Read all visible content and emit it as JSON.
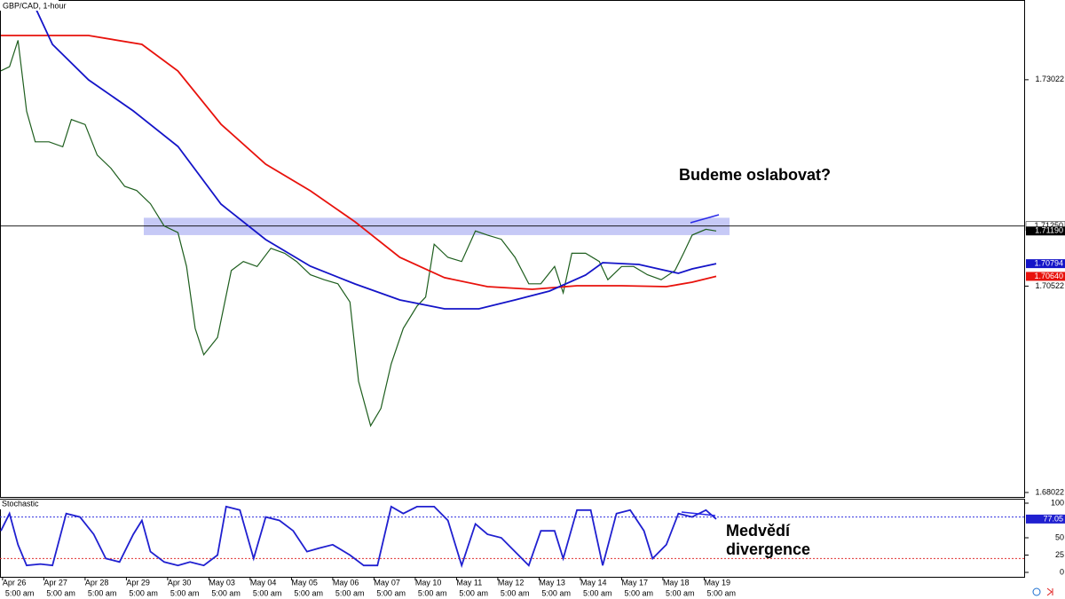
{
  "chart_data": [
    {
      "type": "line",
      "title": "GBP/CAD, 1-hour",
      "xlim": [
        -1.5,
        594.6
      ],
      "ylim": [
        1.67968,
        1.73988
      ],
      "yticks": [
        1.73022,
        1.70522,
        1.68022
      ],
      "xticks": [
        {
          "value": 0,
          "label": "Apr 26"
        },
        {
          "value": 24,
          "label": "Apr 27"
        },
        {
          "value": 48,
          "label": "Apr 28"
        },
        {
          "value": 72,
          "label": "Apr 29"
        },
        {
          "value": 96,
          "label": "Apr 30"
        },
        {
          "value": 120,
          "label": "May 03"
        },
        {
          "value": 144,
          "label": "May 04"
        },
        {
          "value": 168,
          "label": "May 05"
        },
        {
          "value": 192,
          "label": "May 06"
        },
        {
          "value": 216,
          "label": "May 07"
        },
        {
          "value": 240,
          "label": "May 10"
        },
        {
          "value": 264,
          "label": "May 11"
        },
        {
          "value": 288,
          "label": "May 12"
        },
        {
          "value": 312,
          "label": "May 13"
        },
        {
          "value": 336,
          "label": "May 14"
        },
        {
          "value": 360,
          "label": "May 17"
        },
        {
          "value": 384,
          "label": "May 18"
        },
        {
          "value": 408,
          "label": "May 19"
        }
      ],
      "xticks2": [
        {
          "value": 0,
          "label": "5:00 am"
        },
        {
          "value": 24,
          "label": "5:00 am"
        },
        {
          "value": 48,
          "label": "5:00 am"
        },
        {
          "value": 72,
          "label": "5:00 am"
        },
        {
          "value": 96,
          "label": "5:00 am"
        },
        {
          "value": 120,
          "label": "5:00 am"
        },
        {
          "value": 144,
          "label": "5:00 am"
        },
        {
          "value": 168,
          "label": "5:00 am"
        },
        {
          "value": 192,
          "label": "5:00 am"
        },
        {
          "value": 216,
          "label": "5:00 am"
        },
        {
          "value": 240,
          "label": "5:00 am"
        },
        {
          "value": 264,
          "label": "5:00 am"
        },
        {
          "value": 288,
          "label": "5:00 am"
        },
        {
          "value": 312,
          "label": "5:00 am"
        },
        {
          "value": 336,
          "label": "5:00 am"
        },
        {
          "value": 360,
          "label": "5:00 am"
        },
        {
          "value": 384,
          "label": "5:00 am"
        },
        {
          "value": 408,
          "label": "5:00 am"
        }
      ],
      "series": [
        {
          "color": "#1e5e1e",
          "x": [
            -1,
            4,
            9,
            14,
            19,
            27,
            35,
            40,
            48,
            55,
            63,
            71,
            78,
            86,
            94,
            102,
            107,
            112,
            117,
            125,
            133,
            140,
            148,
            156,
            164,
            171,
            179,
            187,
            195,
            202,
            207,
            214,
            220,
            226,
            233,
            241,
            246,
            251,
            259,
            267,
            275,
            282,
            290,
            298,
            306,
            313,
            321,
            326,
            331,
            339,
            347,
            352,
            360,
            367,
            375,
            383,
            391,
            396,
            401,
            409,
            415
          ],
          "values": [
            1.7313,
            1.7318,
            1.735,
            1.7264,
            1.7227,
            1.7227,
            1.7221,
            1.7254,
            1.7248,
            1.7211,
            1.7195,
            1.7173,
            1.7168,
            1.7152,
            1.7125,
            1.7117,
            1.7076,
            1.7001,
            1.6969,
            1.699,
            1.7071,
            1.7082,
            1.7076,
            1.7098,
            1.7092,
            1.7082,
            1.7066,
            1.706,
            1.7055,
            1.7033,
            1.6937,
            1.6883,
            1.6904,
            1.6958,
            1.7001,
            1.7028,
            1.7039,
            1.7103,
            1.7087,
            1.7082,
            1.7119,
            1.7114,
            1.7109,
            1.7087,
            1.7055,
            1.7055,
            1.7076,
            1.7044,
            1.7092,
            1.7092,
            1.7082,
            1.706,
            1.7076,
            1.7076,
            1.7066,
            1.706,
            1.7071,
            1.7092,
            1.7114,
            1.7121,
            1.7119
          ]
        },
        {
          "color": "#e8120c",
          "x": [
            -1,
            50,
            81,
            102,
            127,
            153,
            179,
            205,
            231,
            257,
            282,
            308,
            334,
            360,
            386,
            401,
            415
          ],
          "values": [
            1.73558,
            1.73558,
            1.73451,
            1.73128,
            1.72483,
            1.71999,
            1.71677,
            1.71301,
            1.70871,
            1.70624,
            1.70516,
            1.70484,
            1.70527,
            1.70527,
            1.70516,
            1.7057,
            1.7064
          ]
        },
        {
          "color": "#1414c8",
          "x": [
            17,
            29,
            50,
            76,
            102,
            127,
            153,
            179,
            205,
            231,
            257,
            277,
            298,
            318,
            339,
            349,
            370,
            386,
            393,
            401,
            415
          ],
          "values": [
            1.73988,
            1.73451,
            1.73021,
            1.72644,
            1.72214,
            1.71515,
            1.71086,
            1.70763,
            1.70548,
            1.70355,
            1.70247,
            1.70247,
            1.70355,
            1.70462,
            1.70656,
            1.70806,
            1.70785,
            1.70709,
            1.70677,
            1.70731,
            1.70794
          ]
        }
      ],
      "zone": [
        1.7114,
        1.7135
      ],
      "zone_color": "#b8bcf4",
      "hline": {
        "value": 1.7125,
        "label": "1.71250"
      },
      "price_markers": [
        {
          "value": 1.7119,
          "label": "1.71190",
          "color": "#000000"
        },
        {
          "value": 1.70794,
          "label": "1.70794",
          "color": "#1414c8"
        },
        {
          "value": 1.7064,
          "label": "1.70640",
          "color": "#e8120c"
        }
      ],
      "annotation": "Budeme oslabovat?"
    },
    {
      "type": "line",
      "title": "Stochastic",
      "xlim": [
        -1.5,
        594.6
      ],
      "ylim": [
        -6.4,
        106.4
      ],
      "yticks": [
        100,
        50,
        25,
        0
      ],
      "levels": [
        {
          "value": 80,
          "color": "#3030e0"
        },
        {
          "value": 20,
          "color": "#e03030"
        }
      ],
      "series": [
        {
          "color": "#2020d0",
          "x": [
            -1,
            4,
            9,
            14,
            22,
            29,
            37,
            45,
            53,
            60,
            68,
            76,
            81,
            86,
            94,
            102,
            109,
            117,
            125,
            130,
            138,
            146,
            153,
            161,
            169,
            177,
            184,
            192,
            202,
            210,
            218,
            226,
            233,
            241,
            251,
            259,
            267,
            275,
            282,
            290,
            298,
            306,
            313,
            321,
            326,
            334,
            342,
            349,
            357,
            365,
            373,
            378,
            386,
            393,
            401,
            409,
            415
          ],
          "values": [
            60,
            85,
            40,
            10,
            12,
            10,
            85,
            80,
            55,
            20,
            15,
            55,
            75,
            30,
            15,
            10,
            15,
            10,
            25,
            95,
            90,
            20,
            80,
            75,
            60,
            30,
            35,
            40,
            25,
            10,
            10,
            95,
            85,
            95,
            95,
            75,
            10,
            70,
            55,
            50,
            30,
            10,
            60,
            60,
            20,
            90,
            90,
            10,
            85,
            90,
            60,
            20,
            40,
            85,
            80,
            90,
            77.05
          ]
        }
      ],
      "annotation": [
        "Medvědí",
        "divergence"
      ]
    }
  ]
}
